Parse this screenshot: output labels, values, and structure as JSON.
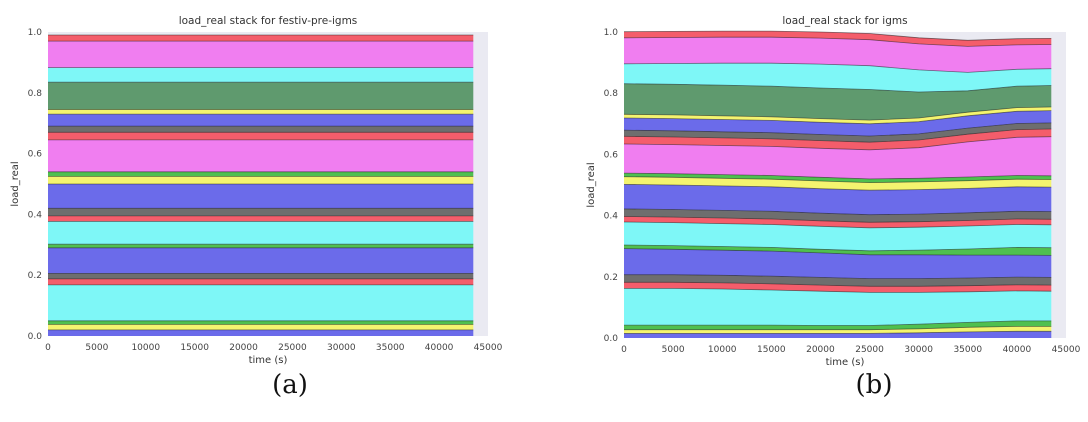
{
  "captions": {
    "a": "(a)",
    "b": "(b)"
  },
  "chart_data": [
    {
      "type": "area",
      "title": "load_real stack for festiv-pre-igms",
      "xlabel": "time (s)",
      "ylabel": "load_real",
      "xlim": [
        0,
        45000
      ],
      "ylim": [
        0.0,
        1.0
      ],
      "x_ticks": [
        0,
        5000,
        10000,
        15000,
        20000,
        25000,
        30000,
        35000,
        40000,
        45000
      ],
      "y_ticks": [
        "0.0",
        "0.2",
        "0.4",
        "0.6",
        "0.8",
        "1.0"
      ],
      "x": [
        0,
        43500
      ],
      "grid": false,
      "series": [
        {
          "color": "#6b6bea",
          "values": [
            0.02,
            0.02
          ]
        },
        {
          "color": "#f4f46f",
          "values": [
            0.018,
            0.018
          ]
        },
        {
          "color": "#4fc04f",
          "values": [
            0.012,
            0.012
          ]
        },
        {
          "color": "#7ef7f7",
          "values": [
            0.118,
            0.118
          ]
        },
        {
          "color": "#f45d6b",
          "values": [
            0.02,
            0.02
          ]
        },
        {
          "color": "#6e6e6e",
          "values": [
            0.018,
            0.018
          ]
        },
        {
          "color": "#6b6bea",
          "values": [
            0.084,
            0.084
          ]
        },
        {
          "color": "#4fc04f",
          "values": [
            0.012,
            0.012
          ]
        },
        {
          "color": "#7ef7f7",
          "values": [
            0.075,
            0.075
          ]
        },
        {
          "color": "#f45d6b",
          "values": [
            0.018,
            0.018
          ]
        },
        {
          "color": "#6e6e6e",
          "values": [
            0.025,
            0.025
          ]
        },
        {
          "color": "#6b6bea",
          "values": [
            0.08,
            0.08
          ]
        },
        {
          "color": "#f4f46f",
          "values": [
            0.025,
            0.025
          ]
        },
        {
          "color": "#4fc04f",
          "values": [
            0.015,
            0.015
          ]
        },
        {
          "color": "#f07ef0",
          "values": [
            0.105,
            0.105
          ]
        },
        {
          "color": "#f45d6b",
          "values": [
            0.025,
            0.025
          ]
        },
        {
          "color": "#6e6e6e",
          "values": [
            0.02,
            0.02
          ]
        },
        {
          "color": "#6b6bea",
          "values": [
            0.04,
            0.04
          ]
        },
        {
          "color": "#f4f46f",
          "values": [
            0.015,
            0.015
          ]
        },
        {
          "color": "#5f9a6e",
          "values": [
            0.09,
            0.09
          ]
        },
        {
          "color": "#7ef7f7",
          "values": [
            0.048,
            0.048
          ]
        },
        {
          "color": "#f07ef0",
          "values": [
            0.087,
            0.087
          ]
        },
        {
          "color": "#f45d6b",
          "values": [
            0.02,
            0.02
          ]
        }
      ]
    },
    {
      "type": "area",
      "title": "load_real stack for igms",
      "xlabel": "time (s)",
      "ylabel": "load_real",
      "xlim": [
        0,
        45000
      ],
      "ylim": [
        0.0,
        1.0
      ],
      "x_ticks": [
        0,
        5000,
        10000,
        15000,
        20000,
        25000,
        30000,
        35000,
        40000,
        45000
      ],
      "y_ticks": [
        "0.0",
        "0.2",
        "0.4",
        "0.6",
        "0.8",
        "1.0"
      ],
      "x": [
        0,
        5000,
        10000,
        15000,
        20000,
        25000,
        30000,
        35000,
        40000,
        43500
      ],
      "grid": false,
      "series": [
        {
          "color": "#6b6bea",
          "values": [
            0.015,
            0.015,
            0.015,
            0.015,
            0.015,
            0.015,
            0.017,
            0.02,
            0.022,
            0.022
          ]
        },
        {
          "color": "#f4f46f",
          "values": [
            0.012,
            0.012,
            0.012,
            0.012,
            0.012,
            0.012,
            0.013,
            0.015,
            0.016,
            0.016
          ]
        },
        {
          "color": "#4fc04f",
          "values": [
            0.015,
            0.015,
            0.015,
            0.015,
            0.014,
            0.014,
            0.015,
            0.016,
            0.018,
            0.018
          ]
        },
        {
          "color": "#7ef7f7",
          "values": [
            0.12,
            0.12,
            0.118,
            0.115,
            0.112,
            0.108,
            0.104,
            0.1,
            0.098,
            0.097
          ]
        },
        {
          "color": "#f45d6b",
          "values": [
            0.02,
            0.02,
            0.02,
            0.02,
            0.02,
            0.02,
            0.02,
            0.02,
            0.02,
            0.02
          ]
        },
        {
          "color": "#6e6e6e",
          "values": [
            0.025,
            0.025,
            0.025,
            0.025,
            0.025,
            0.025,
            0.025,
            0.025,
            0.025,
            0.025
          ]
        },
        {
          "color": "#6b6bea",
          "values": [
            0.085,
            0.083,
            0.082,
            0.082,
            0.08,
            0.078,
            0.078,
            0.075,
            0.072,
            0.072
          ]
        },
        {
          "color": "#4fc04f",
          "values": [
            0.012,
            0.012,
            0.012,
            0.012,
            0.012,
            0.013,
            0.015,
            0.02,
            0.025,
            0.025
          ]
        },
        {
          "color": "#7ef7f7",
          "values": [
            0.075,
            0.075,
            0.075,
            0.075,
            0.075,
            0.075,
            0.075,
            0.075,
            0.075,
            0.075
          ]
        },
        {
          "color": "#f45d6b",
          "values": [
            0.018,
            0.018,
            0.018,
            0.018,
            0.018,
            0.018,
            0.018,
            0.018,
            0.018,
            0.018
          ]
        },
        {
          "color": "#6e6e6e",
          "values": [
            0.025,
            0.025,
            0.025,
            0.025,
            0.025,
            0.025,
            0.025,
            0.025,
            0.025,
            0.025
          ]
        },
        {
          "color": "#6b6bea",
          "values": [
            0.08,
            0.08,
            0.08,
            0.08,
            0.08,
            0.08,
            0.08,
            0.08,
            0.08,
            0.08
          ]
        },
        {
          "color": "#f4f46f",
          "values": [
            0.025,
            0.025,
            0.025,
            0.025,
            0.025,
            0.025,
            0.025,
            0.025,
            0.025,
            0.025
          ]
        },
        {
          "color": "#4fc04f",
          "values": [
            0.012,
            0.012,
            0.012,
            0.012,
            0.012,
            0.012,
            0.012,
            0.012,
            0.012,
            0.012
          ]
        },
        {
          "color": "#f07ef0",
          "values": [
            0.095,
            0.095,
            0.095,
            0.095,
            0.095,
            0.095,
            0.1,
            0.115,
            0.125,
            0.128
          ]
        },
        {
          "color": "#f45d6b",
          "values": [
            0.025,
            0.025,
            0.025,
            0.025,
            0.025,
            0.025,
            0.025,
            0.025,
            0.025,
            0.025
          ]
        },
        {
          "color": "#6e6e6e",
          "values": [
            0.02,
            0.02,
            0.02,
            0.02,
            0.02,
            0.02,
            0.02,
            0.02,
            0.02,
            0.02
          ]
        },
        {
          "color": "#6b6bea",
          "values": [
            0.04,
            0.04,
            0.04,
            0.04,
            0.04,
            0.04,
            0.04,
            0.04,
            0.04,
            0.04
          ]
        },
        {
          "color": "#f4f46f",
          "values": [
            0.012,
            0.012,
            0.012,
            0.012,
            0.012,
            0.012,
            0.012,
            0.012,
            0.012,
            0.012
          ]
        },
        {
          "color": "#5f9a6e",
          "values": [
            0.1,
            0.1,
            0.1,
            0.1,
            0.1,
            0.1,
            0.085,
            0.07,
            0.07,
            0.07
          ]
        },
        {
          "color": "#7ef7f7",
          "values": [
            0.065,
            0.068,
            0.072,
            0.075,
            0.078,
            0.078,
            0.072,
            0.06,
            0.055,
            0.055
          ]
        },
        {
          "color": "#f07ef0",
          "values": [
            0.085,
            0.085,
            0.085,
            0.085,
            0.085,
            0.085,
            0.085,
            0.085,
            0.08,
            0.079
          ]
        },
        {
          "color": "#f45d6b",
          "values": [
            0.02,
            0.02,
            0.02,
            0.02,
            0.02,
            0.02,
            0.02,
            0.02,
            0.02,
            0.02
          ]
        }
      ]
    }
  ]
}
